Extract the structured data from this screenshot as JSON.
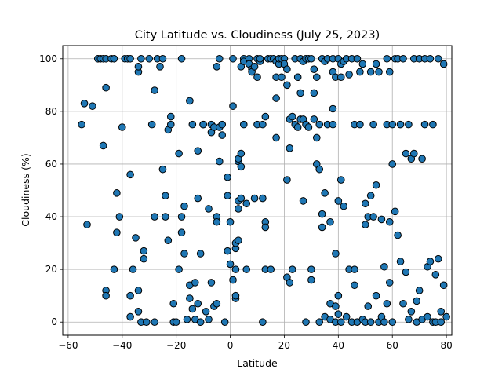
{
  "chart_data": {
    "type": "scatter",
    "title": "City Latitude vs. Cloudiness (July 25, 2023)",
    "xlabel": "Latitude",
    "ylabel": "Cloudiness (%)",
    "xlim": [
      -62,
      82
    ],
    "ylim": [
      -5,
      105
    ],
    "xticks": [
      -60,
      -40,
      -20,
      0,
      20,
      40,
      60,
      80
    ],
    "yticks": [
      0,
      20,
      40,
      60,
      80,
      100
    ],
    "grid": true,
    "marker_color": "#1f77b4",
    "marker_edge_color": "#000000",
    "points": [
      [
        -55,
        75
      ],
      [
        -54,
        83
      ],
      [
        -53,
        37
      ],
      [
        -51,
        82
      ],
      [
        -49,
        100
      ],
      [
        -48,
        100
      ],
      [
        -47,
        100
      ],
      [
        -46,
        100
      ],
      [
        -47,
        67
      ],
      [
        -46,
        89
      ],
      [
        -46,
        12
      ],
      [
        -46,
        10
      ],
      [
        -44,
        100
      ],
      [
        -43,
        100
      ],
      [
        -43,
        20
      ],
      [
        -42,
        49
      ],
      [
        -42,
        34
      ],
      [
        -41,
        40
      ],
      [
        -40,
        74
      ],
      [
        -39,
        100
      ],
      [
        -38,
        100
      ],
      [
        -37,
        100
      ],
      [
        -37,
        56
      ],
      [
        -37,
        2
      ],
      [
        -37,
        10
      ],
      [
        -36,
        20
      ],
      [
        -35,
        32
      ],
      [
        -34,
        4
      ],
      [
        -34,
        12
      ],
      [
        -34,
        95
      ],
      [
        -34,
        97
      ],
      [
        -33,
        0
      ],
      [
        -33,
        100
      ],
      [
        -32,
        27
      ],
      [
        -32,
        24
      ],
      [
        -31,
        0
      ],
      [
        -30,
        100
      ],
      [
        -29,
        75
      ],
      [
        -28,
        40
      ],
      [
        -28,
        88
      ],
      [
        -28,
        0
      ],
      [
        -27,
        100
      ],
      [
        -26,
        97
      ],
      [
        -25,
        100
      ],
      [
        -25,
        58
      ],
      [
        -24,
        48
      ],
      [
        -24,
        40
      ],
      [
        -23,
        73
      ],
      [
        -23,
        31
      ],
      [
        -22,
        78
      ],
      [
        -22,
        75
      ],
      [
        -21,
        7
      ],
      [
        -21,
        0
      ],
      [
        -20,
        0
      ],
      [
        -19,
        20
      ],
      [
        -19,
        64
      ],
      [
        -18,
        100
      ],
      [
        -18,
        40
      ],
      [
        -18,
        34
      ],
      [
        -17,
        26
      ],
      [
        -17,
        44
      ],
      [
        -16,
        1
      ],
      [
        -15,
        84
      ],
      [
        -15,
        14
      ],
      [
        -15,
        9
      ],
      [
        -14,
        5
      ],
      [
        -14,
        75
      ],
      [
        -13,
        1
      ],
      [
        -13,
        15
      ],
      [
        -12,
        65
      ],
      [
        -12,
        47
      ],
      [
        -12,
        7
      ],
      [
        -11,
        26
      ],
      [
        -11,
        0
      ],
      [
        -10,
        75
      ],
      [
        -10,
        75
      ],
      [
        -9,
        4
      ],
      [
        -8,
        43
      ],
      [
        -8,
        1
      ],
      [
        -7,
        15
      ],
      [
        -7,
        72
      ],
      [
        -7,
        75
      ],
      [
        -6,
        6
      ],
      [
        -6,
        74
      ],
      [
        -5,
        40
      ],
      [
        -5,
        97
      ],
      [
        -5,
        38
      ],
      [
        -5,
        7
      ],
      [
        -4,
        100
      ],
      [
        -4,
        61
      ],
      [
        -4,
        74
      ],
      [
        -3,
        75
      ],
      [
        -3,
        71
      ],
      [
        -2,
        0
      ],
      [
        -1,
        27
      ],
      [
        -1,
        55
      ],
      [
        -1,
        48
      ],
      [
        0,
        38
      ],
      [
        0,
        22
      ],
      [
        1,
        100
      ],
      [
        1,
        82
      ],
      [
        1,
        16
      ],
      [
        2,
        20
      ],
      [
        2,
        9
      ],
      [
        2,
        10
      ],
      [
        2,
        28
      ],
      [
        2,
        30
      ],
      [
        3,
        31
      ],
      [
        3,
        61
      ],
      [
        3,
        62
      ],
      [
        3,
        43
      ],
      [
        3,
        46
      ],
      [
        4,
        59
      ],
      [
        4,
        64
      ],
      [
        4,
        47
      ],
      [
        4,
        97
      ],
      [
        5,
        100
      ],
      [
        5,
        99
      ],
      [
        5,
        75
      ],
      [
        6,
        20
      ],
      [
        6,
        45
      ],
      [
        7,
        100
      ],
      [
        7,
        98
      ],
      [
        8,
        96
      ],
      [
        8,
        95
      ],
      [
        9,
        47
      ],
      [
        9,
        97
      ],
      [
        10,
        93
      ],
      [
        10,
        75
      ],
      [
        10,
        100
      ],
      [
        11,
        99
      ],
      [
        11,
        100
      ],
      [
        12,
        75
      ],
      [
        12,
        47
      ],
      [
        12,
        0
      ],
      [
        13,
        38
      ],
      [
        13,
        36
      ],
      [
        13,
        20
      ],
      [
        13,
        78
      ],
      [
        14,
        100
      ],
      [
        15,
        20
      ],
      [
        15,
        100
      ],
      [
        16,
        100
      ],
      [
        17,
        99
      ],
      [
        17,
        70
      ],
      [
        17,
        85
      ],
      [
        17,
        93
      ],
      [
        18,
        98
      ],
      [
        18,
        100
      ],
      [
        19,
        100
      ],
      [
        19,
        93
      ],
      [
        20,
        100
      ],
      [
        20,
        98
      ],
      [
        21,
        96
      ],
      [
        21,
        54
      ],
      [
        21,
        90
      ],
      [
        21,
        17
      ],
      [
        22,
        66
      ],
      [
        22,
        15
      ],
      [
        22,
        77
      ],
      [
        23,
        20
      ],
      [
        23,
        78
      ],
      [
        24,
        100
      ],
      [
        24,
        75
      ],
      [
        25,
        93
      ],
      [
        25,
        74
      ],
      [
        26,
        77
      ],
      [
        26,
        100
      ],
      [
        26,
        87
      ],
      [
        27,
        99
      ],
      [
        27,
        77
      ],
      [
        27,
        46
      ],
      [
        28,
        0
      ],
      [
        28,
        75
      ],
      [
        28,
        100
      ],
      [
        29,
        100
      ],
      [
        29,
        74
      ],
      [
        30,
        20
      ],
      [
        30,
        100
      ],
      [
        30,
        16
      ],
      [
        31,
        96
      ],
      [
        31,
        87
      ],
      [
        31,
        77
      ],
      [
        32,
        93
      ],
      [
        32,
        60
      ],
      [
        32,
        70
      ],
      [
        33,
        75
      ],
      [
        33,
        58
      ],
      [
        33,
        0
      ],
      [
        34,
        100
      ],
      [
        34,
        36
      ],
      [
        34,
        41
      ],
      [
        35,
        99
      ],
      [
        35,
        49
      ],
      [
        35,
        2
      ],
      [
        36,
        100
      ],
      [
        36,
        75
      ],
      [
        37,
        38
      ],
      [
        37,
        7
      ],
      [
        37,
        1
      ],
      [
        38,
        100
      ],
      [
        38,
        95
      ],
      [
        38,
        75
      ],
      [
        38,
        81
      ],
      [
        39,
        93
      ],
      [
        39,
        6
      ],
      [
        39,
        26
      ],
      [
        39,
        0
      ],
      [
        40,
        100
      ],
      [
        40,
        3
      ],
      [
        40,
        10
      ],
      [
        40,
        46
      ],
      [
        41,
        98
      ],
      [
        41,
        93
      ],
      [
        41,
        54
      ],
      [
        41,
        0
      ],
      [
        42,
        99
      ],
      [
        42,
        44
      ],
      [
        43,
        100
      ],
      [
        43,
        2
      ],
      [
        44,
        94
      ],
      [
        44,
        20
      ],
      [
        45,
        0
      ],
      [
        45,
        100
      ],
      [
        46,
        75
      ],
      [
        46,
        14
      ],
      [
        46,
        20
      ],
      [
        47,
        100
      ],
      [
        47,
        0
      ],
      [
        48,
        75
      ],
      [
        48,
        95
      ],
      [
        49,
        98
      ],
      [
        49,
        1
      ],
      [
        50,
        45
      ],
      [
        50,
        37
      ],
      [
        50,
        0
      ],
      [
        51,
        40
      ],
      [
        51,
        6
      ],
      [
        52,
        95
      ],
      [
        52,
        48
      ],
      [
        52,
        0
      ],
      [
        53,
        75
      ],
      [
        53,
        40
      ],
      [
        54,
        98
      ],
      [
        54,
        52
      ],
      [
        54,
        10
      ],
      [
        55,
        0
      ],
      [
        55,
        95
      ],
      [
        56,
        39
      ],
      [
        56,
        2
      ],
      [
        57,
        21
      ],
      [
        57,
        0
      ],
      [
        58,
        100
      ],
      [
        58,
        75
      ],
      [
        58,
        7
      ],
      [
        59,
        95
      ],
      [
        59,
        15
      ],
      [
        59,
        38
      ],
      [
        60,
        75
      ],
      [
        60,
        60
      ],
      [
        60,
        0
      ],
      [
        61,
        100
      ],
      [
        61,
        42
      ],
      [
        62,
        100
      ],
      [
        62,
        33
      ],
      [
        63,
        75
      ],
      [
        63,
        23
      ],
      [
        64,
        100
      ],
      [
        64,
        7
      ],
      [
        65,
        64
      ],
      [
        65,
        19
      ],
      [
        66,
        75
      ],
      [
        66,
        1
      ],
      [
        67,
        62
      ],
      [
        67,
        4
      ],
      [
        68,
        100
      ],
      [
        68,
        64
      ],
      [
        69,
        8
      ],
      [
        69,
        0
      ],
      [
        70,
        100
      ],
      [
        70,
        12
      ],
      [
        71,
        62
      ],
      [
        71,
        1
      ],
      [
        72,
        100
      ],
      [
        72,
        75
      ],
      [
        73,
        21
      ],
      [
        73,
        2
      ],
      [
        74,
        100
      ],
      [
        74,
        23
      ],
      [
        75,
        75
      ],
      [
        75,
        0
      ],
      [
        76,
        18
      ],
      [
        76,
        0
      ],
      [
        77,
        100
      ],
      [
        77,
        24
      ],
      [
        78,
        0
      ],
      [
        78,
        4
      ],
      [
        79,
        98
      ],
      [
        79,
        14
      ],
      [
        80,
        2
      ]
    ]
  }
}
